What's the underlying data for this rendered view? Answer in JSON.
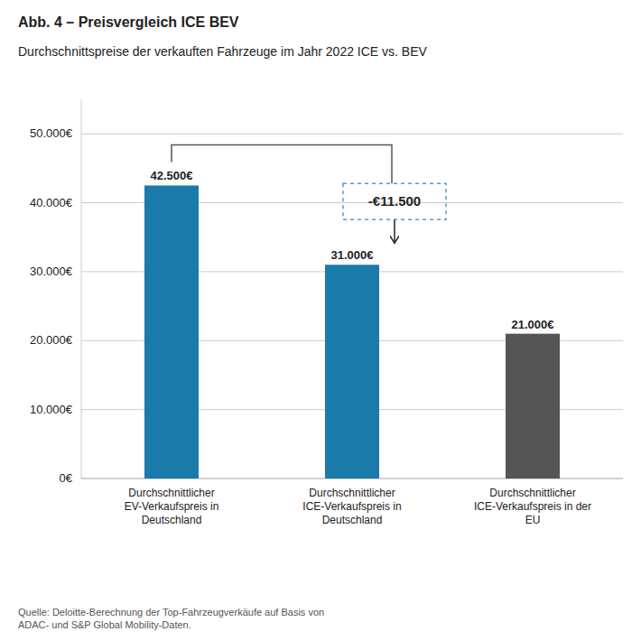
{
  "chart_data": {
    "type": "bar",
    "title": "Abb. 4 –  Preisvergleich ICE BEV",
    "subtitle": "Durchschnittspreise der verkauften Fahrzeuge im Jahr 2022 ICE vs. BEV",
    "categories": [
      "Durchschnittlicher\nEV-Verkaufspreis in\nDeutschland",
      "Durchschnittlicher\nICE-Verkaufspreis in\nDeutschland",
      "Durchschnittlicher\nICE-Verkaufspreis in der\nEU"
    ],
    "values": [
      42500,
      31000,
      21000
    ],
    "value_labels": [
      "42.500€",
      "31.000€",
      "21.000€"
    ],
    "colors": [
      "#1a7aaa",
      "#1a7aaa",
      "#555555"
    ],
    "ylim": [
      0,
      55000
    ],
    "yticks": [
      {
        "value": 0,
        "label": "0€"
      },
      {
        "value": 10000,
        "label": "10.000€"
      },
      {
        "value": 20000,
        "label": "20.000€"
      },
      {
        "value": 30000,
        "label": "30.000€"
      },
      {
        "value": 40000,
        "label": "40.000€"
      },
      {
        "value": 50000,
        "label": "50.000€"
      }
    ],
    "grid": true,
    "data_labels": true,
    "annotation": "-€11.500",
    "source": "Quelle: Deloitte-Berechnung der Top-Fahrzeugverkäufe auf Basis von\nADAC- und S&P Global Mobility-Daten."
  }
}
